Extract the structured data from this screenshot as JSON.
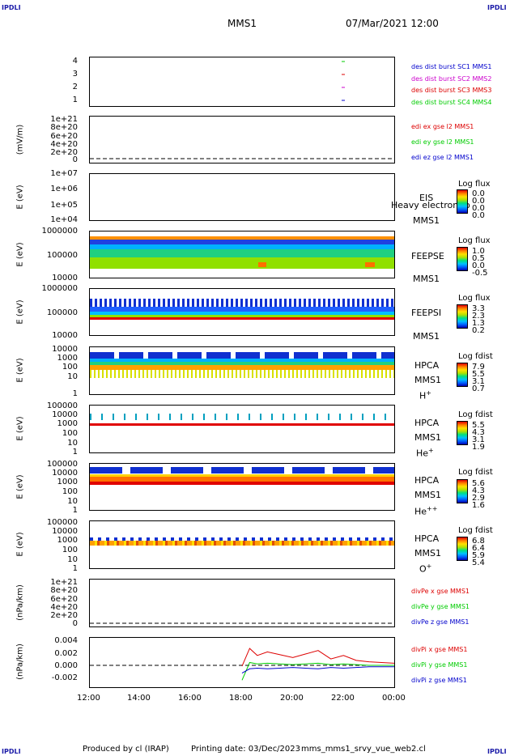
{
  "corners": {
    "tl": "IPDLI",
    "tr": "IPDLI",
    "bl": "IPDLI",
    "br": "IPDLI"
  },
  "header": {
    "mission": "MMS1",
    "datetime": "07/Mar/2021 12:00"
  },
  "footer": {
    "produced": "Produced by cl (IRAP)",
    "printing": "Printing date: 03/Dec/2023",
    "script": "mms_mms1_srvy_vue_web2.cl"
  },
  "colors": {
    "red": "#dd0000",
    "green": "#00cc00",
    "blue": "#0000cc",
    "magenta": "#cc00cc"
  },
  "xaxis": {
    "ticks": [
      "12:00",
      "14:00",
      "16:00",
      "18:00",
      "20:00",
      "22:00",
      "00:00"
    ]
  },
  "panels": {
    "p1": {
      "yticks": [
        "4",
        "3",
        "2",
        "1"
      ],
      "legend": [
        {
          "text": "des dist burst SC1 MMS1",
          "color": "#0000cc"
        },
        {
          "text": "des dist burst SC2 MMS2",
          "color": "#cc00cc"
        },
        {
          "text": "des dist burst SC3 MMS3",
          "color": "#dd0000"
        },
        {
          "text": "des dist burst SC4 MMS4",
          "color": "#00cc00"
        }
      ]
    },
    "p2": {
      "ylabel": "(mV/m)",
      "yticks": [
        "1e+21",
        "8e+20",
        "6e+20",
        "4e+20",
        "2e+20",
        "0"
      ],
      "legend": [
        {
          "text": "edi ex gse l2 MMS1",
          "color": "#dd0000"
        },
        {
          "text": "edi ey gse l2 MMS1",
          "color": "#00cc00"
        },
        {
          "text": "edi ez gse l2 MMS1",
          "color": "#0000cc"
        }
      ]
    },
    "p3": {
      "ylabel": "E (eV)",
      "yticks": [
        "1e+07",
        "1e+06",
        "1e+05",
        "1e+04"
      ],
      "inst": "EIS",
      "inst2": "MMS1",
      "overlay": "Heavy electron to",
      "cbtitle": "Log flux",
      "cbticks": [
        "0.0",
        "0.0",
        "0.0",
        "0.0"
      ]
    },
    "p4": {
      "ylabel": "E (eV)",
      "yticks": [
        "1000000",
        "100000",
        "10000"
      ],
      "inst": "FEEPSE",
      "inst2": "MMS1",
      "cbtitle": "Log flux",
      "cbticks": [
        "1.0",
        "0.5",
        "0.0",
        "-0.5"
      ]
    },
    "p5": {
      "ylabel": "E (eV)",
      "yticks": [
        "1000000",
        "100000",
        "10000"
      ],
      "inst": "FEEPSI",
      "inst2": "MMS1",
      "cbtitle": "Log flux",
      "cbticks": [
        "3.3",
        "2.3",
        "1.3",
        "0.2"
      ]
    },
    "p6": {
      "ylabel": "E (eV)",
      "yticks": [
        "10000",
        "1000",
        "100",
        "10",
        "1"
      ],
      "inst": "HPCA",
      "inst2": "MMS1",
      "species": "H",
      "sup": "+",
      "cbtitle": "Log fdist",
      "cbticks": [
        "7.9",
        "5.5",
        "3.1",
        "0.7"
      ]
    },
    "p7": {
      "ylabel": "E (eV)",
      "yticks": [
        "100000",
        "10000",
        "1000",
        "100",
        "10",
        "1"
      ],
      "inst": "HPCA",
      "inst2": "MMS1",
      "species": "He",
      "sup": "+",
      "cbtitle": "Log fdist",
      "cbticks": [
        "5.5",
        "4.3",
        "3.1",
        "1.9"
      ]
    },
    "p8": {
      "ylabel": "E (eV)",
      "yticks": [
        "100000",
        "10000",
        "1000",
        "100",
        "10",
        "1"
      ],
      "inst": "HPCA",
      "inst2": "MMS1",
      "species": "He",
      "sup": "++",
      "cbtitle": "Log fdist",
      "cbticks": [
        "5.6",
        "4.3",
        "2.9",
        "1.6"
      ]
    },
    "p9": {
      "ylabel": "E (eV)",
      "yticks": [
        "100000",
        "10000",
        "1000",
        "100",
        "10",
        "1"
      ],
      "inst": "HPCA",
      "inst2": "MMS1",
      "species": "O",
      "sup": "+",
      "cbtitle": "Log fdist",
      "cbticks": [
        "6.8",
        "6.4",
        "5.9",
        "5.4"
      ]
    },
    "p10": {
      "ylabel": "(nPa/km)",
      "yticks": [
        "1e+21",
        "8e+20",
        "6e+20",
        "4e+20",
        "2e+20",
        "0"
      ],
      "legend": [
        {
          "text": "divPe x gse MMS1",
          "color": "#dd0000"
        },
        {
          "text": "divPe y gse MMS1",
          "color": "#00cc00"
        },
        {
          "text": "divPe z gse MMS1",
          "color": "#0000cc"
        }
      ]
    },
    "p11": {
      "ylabel": "(nPa/km)",
      "yticks": [
        "0.004",
        "0.002",
        "0.000",
        "-0.002"
      ],
      "legend": [
        {
          "text": "divPi x gse MMS1",
          "color": "#dd0000"
        },
        {
          "text": "divPi y gse MMS1",
          "color": "#00cc00"
        },
        {
          "text": "divPi z gse MMS1",
          "color": "#0000cc"
        }
      ]
    }
  },
  "chart_data": {
    "type": "line",
    "x_range": [
      "12:00",
      "00:00"
    ],
    "burst_markers": {
      "time": "21:50",
      "sc": [
        1,
        2,
        3,
        4
      ]
    },
    "divPi": {
      "ylim": [
        -0.003,
        0.004
      ],
      "active_from": "18:00",
      "x_hours": [
        18.0,
        18.3,
        18.6,
        19.0,
        19.5,
        20.0,
        20.5,
        21.0,
        21.5,
        22.0,
        22.5,
        23.0,
        23.5,
        24.0
      ],
      "x_component": [
        0.0,
        0.0025,
        0.0015,
        0.002,
        0.0016,
        0.0012,
        0.0017,
        0.0022,
        0.001,
        0.0015,
        0.0008,
        0.0006,
        0.0005,
        0.0004
      ],
      "y_component": [
        -0.002,
        0.0005,
        0.0003,
        0.0004,
        0.0003,
        0.0002,
        0.0003,
        0.0004,
        0.0002,
        0.0003,
        0.0002,
        0.0001,
        0.0001,
        0.0001
      ],
      "z_component": [
        -0.001,
        -0.0004,
        -0.0003,
        -0.0004,
        -0.0003,
        -0.0002,
        -0.0003,
        -0.0004,
        -0.0002,
        -0.0003,
        -0.0002,
        -0.0001,
        -0.0001,
        -0.0001
      ]
    }
  }
}
